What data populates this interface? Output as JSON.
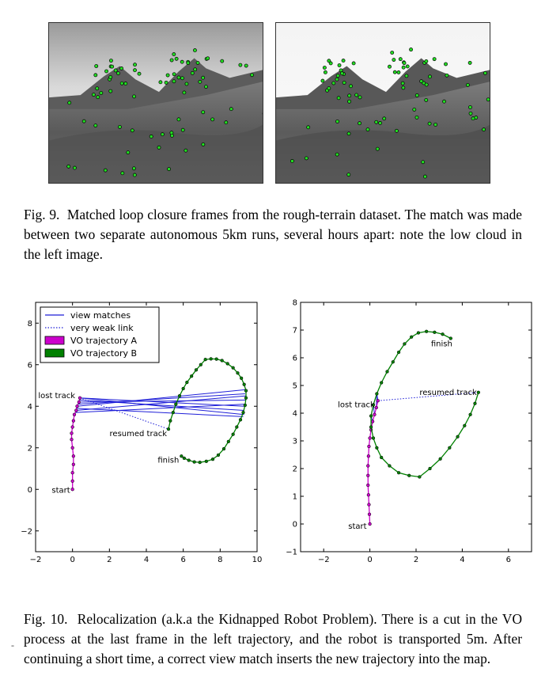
{
  "figure9": {
    "caption_label": "Fig. 9.",
    "caption_text": "Matched loop closure frames from the rough-terrain dataset. The match was made between two separate autonomous 5km runs, several hours apart: note the low cloud in the left image."
  },
  "figure10": {
    "caption_label": "Fig. 10.",
    "caption_text": "Relocalization (a.k.a the Kidnapped Robot Problem). There is a cut in the VO process at the last frame in the left trajectory, and the robot is transported 5m. After continuing a short time, a correct view match inserts the new trajectory into the map."
  },
  "margin_mark": "-",
  "colors": {
    "traj_a": "#cc00cc",
    "traj_b": "#008000",
    "match": "#1f1fd8",
    "feature": "#22dd22"
  },
  "chart_data": [
    {
      "type": "line",
      "xlim": [
        -2,
        10
      ],
      "ylim": [
        -3,
        9
      ],
      "xticks": [
        -2,
        0,
        2,
        4,
        6,
        8,
        10
      ],
      "yticks": [
        -2,
        0,
        2,
        4,
        6,
        8
      ],
      "legend": {
        "placement": "top-left",
        "entries": [
          {
            "label": "view matches",
            "style": "line"
          },
          {
            "label": "very weak link",
            "style": "dotted"
          },
          {
            "label": "VO trajectory A",
            "style": "patch",
            "color": "#cc00cc"
          },
          {
            "label": "VO trajectory B",
            "style": "patch",
            "color": "#008000"
          }
        ]
      },
      "annotations": [
        {
          "text": "start",
          "at": [
            0,
            0
          ],
          "anchor": "end",
          "dx": -3,
          "dy": 4
        },
        {
          "text": "lost track",
          "at": [
            0.4,
            4.4
          ],
          "anchor": "end",
          "dx": -6,
          "dy": 0
        },
        {
          "text": "resumed track",
          "at": [
            5.2,
            2.9
          ],
          "anchor": "end",
          "dx": -2,
          "dy": 9
        },
        {
          "text": "finish",
          "at": [
            5.9,
            1.6
          ],
          "anchor": "end",
          "dx": -3,
          "dy": 8
        }
      ],
      "trajectory_a": {
        "x": [
          0.0,
          0.0,
          0.0,
          0.05,
          0.05,
          0.0,
          -0.05,
          -0.05,
          0.0,
          0.05,
          0.1,
          0.2,
          0.25,
          0.35,
          0.4
        ],
        "y": [
          0.0,
          0.4,
          0.8,
          1.2,
          1.6,
          2.0,
          2.4,
          2.7,
          3.0,
          3.3,
          3.6,
          3.8,
          4.0,
          4.2,
          4.4
        ]
      },
      "trajectory_b": {
        "x": [
          5.2,
          5.3,
          5.45,
          5.6,
          5.8,
          6.0,
          6.2,
          6.45,
          6.7,
          6.95,
          7.2,
          7.5,
          7.8,
          8.1,
          8.4,
          8.7,
          8.95,
          9.15,
          9.3,
          9.4,
          9.4,
          9.35,
          9.25,
          9.1,
          8.9,
          8.7,
          8.45,
          8.2,
          7.9,
          7.6,
          7.25,
          6.9,
          6.6,
          6.3,
          6.05,
          5.9
        ],
        "y": [
          2.9,
          3.3,
          3.7,
          4.1,
          4.5,
          4.85,
          5.15,
          5.45,
          5.75,
          6.0,
          6.25,
          6.28,
          6.27,
          6.2,
          6.05,
          5.85,
          5.6,
          5.35,
          5.05,
          4.75,
          4.4,
          4.05,
          3.7,
          3.35,
          3.0,
          2.65,
          2.3,
          1.95,
          1.65,
          1.45,
          1.35,
          1.3,
          1.32,
          1.4,
          1.5,
          1.6
        ]
      },
      "view_matches": [
        [
          [
            0.4,
            4.4
          ],
          [
            9.3,
            3.6
          ]
        ],
        [
          [
            0.4,
            4.4
          ],
          [
            9.3,
            4.0
          ]
        ],
        [
          [
            0.35,
            4.2
          ],
          [
            9.4,
            4.3
          ]
        ],
        [
          [
            0.3,
            4.1
          ],
          [
            9.35,
            4.6
          ]
        ],
        [
          [
            0.25,
            4.0
          ],
          [
            9.4,
            4.8
          ]
        ],
        [
          [
            0.2,
            3.9
          ],
          [
            9.25,
            3.5
          ]
        ],
        [
          [
            0.2,
            3.8
          ],
          [
            9.4,
            4.5
          ]
        ],
        [
          [
            0.15,
            3.7
          ],
          [
            9.35,
            4.1
          ]
        ],
        [
          [
            0.35,
            4.3
          ],
          [
            9.3,
            3.8
          ]
        ]
      ],
      "weak_link": [
        [
          0.4,
          4.4
        ],
        [
          5.2,
          2.9
        ]
      ]
    },
    {
      "type": "line",
      "xlim": [
        -3,
        7
      ],
      "ylim": [
        -1,
        8
      ],
      "xticks": [
        -2,
        0,
        2,
        4,
        6
      ],
      "yticks": [
        -1,
        0,
        1,
        2,
        3,
        4,
        5,
        6,
        7,
        8
      ],
      "annotations": [
        {
          "text": "start",
          "at": [
            0,
            0
          ],
          "anchor": "end",
          "dx": -4,
          "dy": 6
        },
        {
          "text": "lost track",
          "at": [
            0.35,
            4.45
          ],
          "anchor": "end",
          "dx": -4,
          "dy": 8
        },
        {
          "text": "resumed track",
          "at": [
            4.7,
            4.75
          ],
          "anchor": "end",
          "dx": -2,
          "dy": 3
        },
        {
          "text": "finish",
          "at": [
            3.5,
            6.7
          ],
          "anchor": "end",
          "dx": 2,
          "dy": 10
        }
      ],
      "trajectory_a": {
        "x": [
          0.0,
          -0.02,
          -0.04,
          -0.06,
          -0.08,
          -0.08,
          -0.08,
          -0.06,
          -0.04,
          0.0,
          0.05,
          0.12,
          0.2,
          0.28,
          0.35
        ],
        "y": [
          0.0,
          0.35,
          0.7,
          1.05,
          1.4,
          1.75,
          2.1,
          2.45,
          2.8,
          3.1,
          3.4,
          3.7,
          3.95,
          4.2,
          4.45
        ]
      },
      "trajectory_b": {
        "x": [
          4.7,
          4.55,
          4.35,
          4.1,
          3.8,
          3.45,
          3.05,
          2.6,
          2.15,
          1.7,
          1.25,
          0.85,
          0.5,
          0.3,
          0.15,
          0.05,
          0.05,
          0.15,
          0.3,
          0.5,
          0.75,
          1.0,
          1.25,
          1.5,
          1.8,
          2.1,
          2.45,
          2.8,
          3.15,
          3.5
        ],
        "y": [
          4.75,
          4.35,
          3.95,
          3.55,
          3.15,
          2.75,
          2.35,
          2.0,
          1.7,
          1.75,
          1.85,
          2.1,
          2.4,
          2.75,
          3.1,
          3.5,
          3.9,
          4.3,
          4.7,
          5.1,
          5.5,
          5.85,
          6.2,
          6.5,
          6.75,
          6.9,
          6.95,
          6.92,
          6.85,
          6.7
        ]
      },
      "view_matches": [
        [
          [
            0.28,
            4.2
          ],
          [
            0.3,
            4.7
          ]
        ],
        [
          [
            0.2,
            3.95
          ],
          [
            0.15,
            4.3
          ]
        ],
        [
          [
            0.12,
            3.7
          ],
          [
            0.05,
            3.9
          ]
        ],
        [
          [
            0.05,
            3.4
          ],
          [
            0.05,
            3.5
          ]
        ],
        [
          [
            0.35,
            4.45
          ],
          [
            0.3,
            4.7
          ]
        ]
      ],
      "weak_link": [
        [
          0.35,
          4.45
        ],
        [
          4.7,
          4.75
        ]
      ]
    }
  ]
}
